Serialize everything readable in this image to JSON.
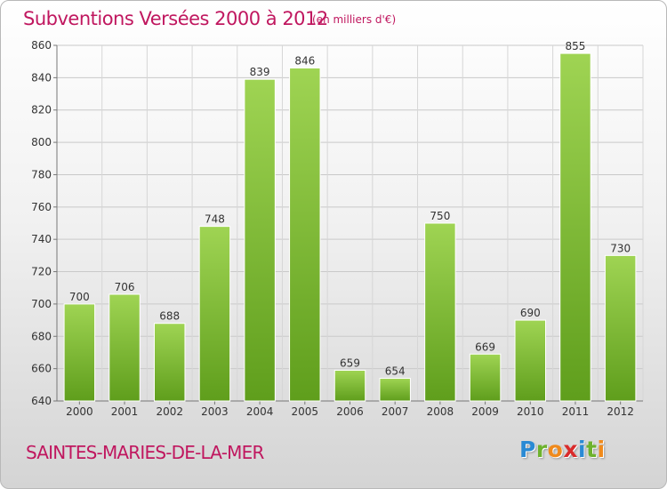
{
  "header": {
    "title": "Subventions Versées 2000 à 2012",
    "subtitle": "(en milliers d'€)"
  },
  "footer": {
    "city": "SAINTES-MARIES-DE-LA-MER",
    "logo_letters": [
      "P",
      "r",
      "o",
      "x",
      "i",
      "t",
      "i"
    ],
    "logo_colors": [
      "#2a8ad4",
      "#6db22d",
      "#f08a1c",
      "#d92b2b",
      "#2a8ad4",
      "#6db22d",
      "#f08a1c"
    ]
  },
  "colors": {
    "bar_light": "#9fd453",
    "bar_dark": "#5f9e1c",
    "accent": "#c0175f"
  },
  "chart_data": {
    "type": "bar",
    "categories": [
      "2000",
      "2001",
      "2002",
      "2003",
      "2004",
      "2005",
      "2006",
      "2007",
      "2008",
      "2009",
      "2010",
      "2011",
      "2012"
    ],
    "values": [
      700,
      706,
      688,
      748,
      839,
      846,
      659,
      654,
      750,
      669,
      690,
      855,
      730
    ],
    "data_labels": [
      "700",
      "706",
      "688",
      "748",
      "839",
      "846",
      "659",
      "654",
      "750",
      "669",
      "690",
      "855",
      "730"
    ],
    "ylim": [
      640,
      860
    ],
    "yticks": [
      640,
      660,
      680,
      700,
      720,
      740,
      760,
      780,
      800,
      820,
      840,
      860
    ],
    "grid": true,
    "title": "Subventions Versées 2000 à 2012",
    "xlabel": "",
    "ylabel": ""
  }
}
